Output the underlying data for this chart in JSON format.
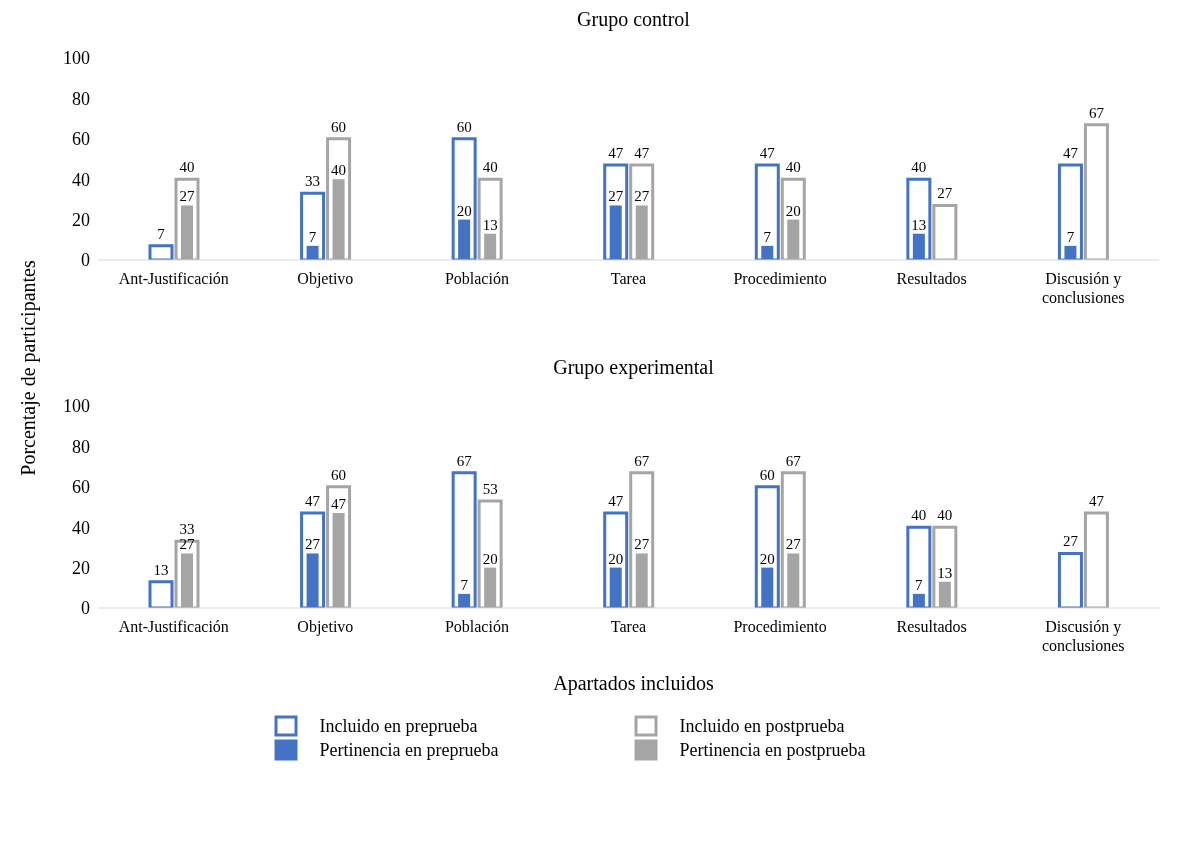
{
  "chart_data": [
    {
      "type": "bar",
      "title": "Grupo control",
      "ylabel": "Porcentaje de participantes",
      "categories": [
        "Ant-Justificación",
        "Objetivo",
        "Población",
        "Tarea",
        "Procedimiento",
        "Resultados",
        "Discusión y conclusiones"
      ],
      "ylim": [
        0,
        100
      ],
      "yticks": [
        0,
        20,
        40,
        60,
        80,
        100
      ],
      "series": [
        {
          "color": "#4472c4",
          "values": [
            7,
            33,
            60,
            47,
            47,
            40,
            47
          ],
          "value_labels": [
            "7",
            "33",
            "60",
            "47",
            "47",
            "40",
            "47"
          ]
        },
        {
          "color": "#a5a5a5",
          "values": [
            40,
            60,
            40,
            47,
            40,
            27,
            67
          ],
          "value_labels": [
            "40",
            "60",
            "40",
            "47",
            "40",
            "27",
            "67"
          ]
        },
        {
          "color": "#4472c4",
          "values": [
            0,
            7,
            20,
            27,
            7,
            13,
            7
          ],
          "value_labels": [
            null,
            "7",
            "20",
            "27",
            "7",
            "13",
            "7"
          ]
        },
        {
          "color": "#a5a5a5",
          "values": [
            27,
            40,
            13,
            27,
            20,
            0,
            0
          ],
          "value_labels": [
            "27",
            "40",
            "13",
            "27",
            "20",
            null,
            null
          ]
        }
      ]
    },
    {
      "type": "bar",
      "title": "Grupo experimental",
      "xlabel": "Apartados incluidos",
      "legend": "bottom",
      "categories": [
        "Ant-Justificación",
        "Objetivo",
        "Población",
        "Tarea",
        "Procedimiento",
        "Resultados",
        "Discusión y conclusiones"
      ],
      "ylim": [
        0,
        100
      ],
      "yticks": [
        0,
        20,
        40,
        60,
        80,
        100
      ],
      "series": [
        {
          "name": "Incluido en preprueba",
          "color": "#4472c4",
          "values": [
            13,
            47,
            67,
            47,
            60,
            40,
            27
          ],
          "value_labels": [
            "13",
            "47",
            "67",
            "47",
            "60",
            "40",
            "27"
          ]
        },
        {
          "name": "Incluido en postprueba",
          "color": "#a5a5a5",
          "values": [
            33,
            60,
            53,
            67,
            67,
            40,
            47
          ],
          "value_labels": [
            "33",
            "60",
            "53",
            "67",
            "67",
            "40",
            "47"
          ]
        },
        {
          "name": "Pertinencia en preprueba",
          "color": "#4472c4",
          "values": [
            0,
            27,
            7,
            20,
            20,
            7,
            0
          ],
          "value_labels": [
            null,
            "27",
            "7",
            "20",
            "20",
            "7",
            null
          ]
        },
        {
          "name": "Pertinencia en postprueba",
          "color": "#a5a5a5",
          "values": [
            27,
            47,
            20,
            27,
            27,
            13,
            0
          ],
          "value_labels": [
            "27",
            "47",
            "20",
            "27",
            "27",
            "13",
            null
          ]
        }
      ]
    }
  ]
}
